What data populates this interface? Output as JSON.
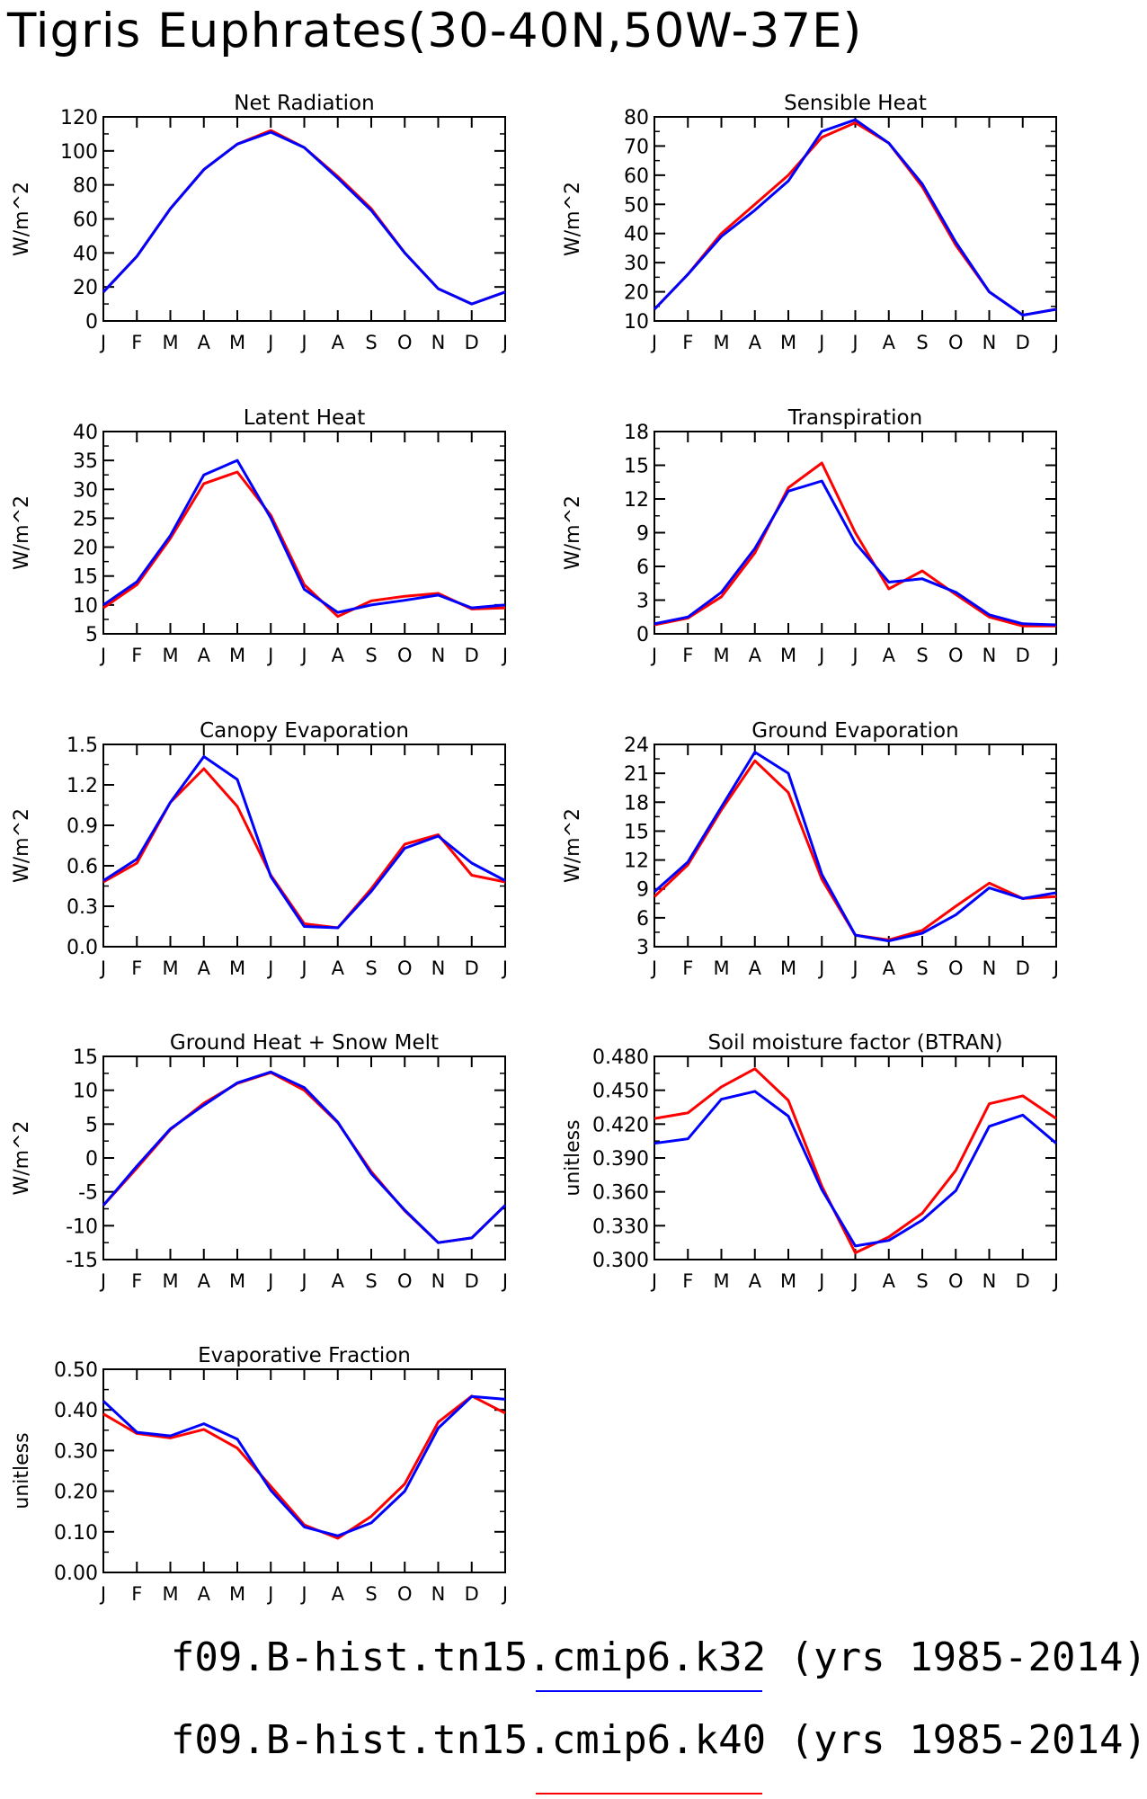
{
  "figure": {
    "title": "Tigris Euphrates(30-40N,50W-37E)"
  },
  "month_labels": [
    "J",
    "F",
    "M",
    "A",
    "M",
    "J",
    "J",
    "A",
    "S",
    "O",
    "N",
    "D",
    "J"
  ],
  "legend": [
    {
      "label": "f09.B-hist.tn15.cmip6.k32",
      "period": "(yrs 1985-2014)",
      "color": "#0000ff"
    },
    {
      "label": "f09.B-hist.tn15.cmip6.k40",
      "period": "(yrs 1985-2014)",
      "color": "#ff0000"
    }
  ],
  "chart_data": [
    {
      "type": "line",
      "title": "Net Radiation",
      "ylabel": "W/m^2",
      "ylim": [
        0,
        120
      ],
      "yticks": [
        "0",
        "20",
        "40",
        "60",
        "80",
        "100",
        "120"
      ],
      "series": [
        {
          "color": "#ff0000",
          "values": [
            17,
            38,
            66,
            89,
            104,
            112,
            102,
            85,
            66,
            40,
            19,
            10,
            17
          ]
        },
        {
          "color": "#0000ff",
          "values": [
            17,
            38,
            66,
            89,
            104,
            111,
            102,
            84,
            65,
            40,
            19,
            10,
            17
          ]
        }
      ]
    },
    {
      "type": "line",
      "title": "Sensible Heat",
      "ylabel": "W/m^2",
      "ylim": [
        10,
        80
      ],
      "yticks": [
        "10",
        "20",
        "30",
        "40",
        "50",
        "60",
        "70",
        "80"
      ],
      "series": [
        {
          "color": "#ff0000",
          "values": [
            14,
            26,
            40,
            50,
            60,
            73,
            78,
            71,
            56,
            36,
            20,
            12,
            14
          ]
        },
        {
          "color": "#0000ff",
          "values": [
            14,
            26,
            39,
            48,
            58,
            75,
            79,
            71,
            57,
            37,
            20,
            12,
            14
          ]
        }
      ]
    },
    {
      "type": "line",
      "title": "Latent Heat",
      "ylabel": "W/m^2",
      "ylim": [
        5,
        40
      ],
      "yticks": [
        "5",
        "10",
        "15",
        "20",
        "25",
        "30",
        "35",
        "40"
      ],
      "series": [
        {
          "color": "#ff0000",
          "values": [
            9.5,
            13.5,
            21.5,
            31,
            33,
            25.5,
            13.5,
            8,
            10.7,
            11.5,
            12,
            9.3,
            9.5
          ]
        },
        {
          "color": "#0000ff",
          "values": [
            10,
            14,
            22,
            32.5,
            35,
            25,
            12.7,
            8.7,
            10,
            10.8,
            11.7,
            9.5,
            10
          ]
        }
      ]
    },
    {
      "type": "line",
      "title": "Transpiration",
      "ylabel": "W/m^2",
      "ylim": [
        0,
        18
      ],
      "yticks": [
        "0",
        "3",
        "6",
        "9",
        "12",
        "15",
        "18"
      ],
      "series": [
        {
          "color": "#ff0000",
          "values": [
            0.8,
            1.4,
            3.3,
            7.2,
            13,
            15.2,
            9,
            4,
            5.6,
            3.5,
            1.5,
            0.7,
            0.7
          ]
        },
        {
          "color": "#0000ff",
          "values": [
            0.9,
            1.5,
            3.7,
            7.6,
            12.7,
            13.6,
            8.1,
            4.6,
            4.9,
            3.7,
            1.7,
            0.9,
            0.8
          ]
        }
      ]
    },
    {
      "type": "line",
      "title": "Canopy Evaporation",
      "ylabel": "W/m^2",
      "ylim": [
        0.0,
        1.5
      ],
      "yticks": [
        "0.0",
        "0.3",
        "0.6",
        "0.9",
        "1.2",
        "1.5"
      ],
      "series": [
        {
          "color": "#ff0000",
          "values": [
            0.48,
            0.62,
            1.07,
            1.32,
            1.04,
            0.53,
            0.17,
            0.14,
            0.43,
            0.76,
            0.83,
            0.53,
            0.48
          ]
        },
        {
          "color": "#0000ff",
          "values": [
            0.49,
            0.65,
            1.07,
            1.41,
            1.24,
            0.52,
            0.15,
            0.14,
            0.41,
            0.73,
            0.82,
            0.62,
            0.49
          ]
        }
      ]
    },
    {
      "type": "line",
      "title": "Ground Evaporation",
      "ylabel": "W/m^2",
      "ylim": [
        3,
        24
      ],
      "yticks": [
        "3",
        "6",
        "9",
        "12",
        "15",
        "18",
        "21",
        "24"
      ],
      "series": [
        {
          "color": "#ff0000",
          "values": [
            8.2,
            11.5,
            17.2,
            22.3,
            19,
            10,
            4.2,
            3.7,
            4.7,
            7.2,
            9.6,
            8.0,
            8.2
          ]
        },
        {
          "color": "#0000ff",
          "values": [
            8.7,
            11.8,
            17.5,
            23.2,
            21,
            10.5,
            4.2,
            3.6,
            4.4,
            6.3,
            9.1,
            8.0,
            8.6
          ]
        }
      ]
    },
    {
      "type": "line",
      "title": "Ground Heat + Snow Melt",
      "ylabel": "W/m^2",
      "ylim": [
        -15,
        15
      ],
      "yticks": [
        "-15",
        "-10",
        "-5",
        "0",
        "5",
        "10",
        "15"
      ],
      "series": [
        {
          "color": "#ff0000",
          "values": [
            -7,
            -1.5,
            4.2,
            8.1,
            11,
            12.6,
            10,
            5.2,
            -2,
            -7.8,
            -12.5,
            -11.8,
            -7
          ]
        },
        {
          "color": "#0000ff",
          "values": [
            -7,
            -1.2,
            4.3,
            7.8,
            11.1,
            12.7,
            10.4,
            5.3,
            -2.3,
            -7.7,
            -12.5,
            -11.8,
            -7
          ]
        }
      ]
    },
    {
      "type": "line",
      "title": "Soil moisture factor (BTRAN)",
      "ylabel": "unitless",
      "ylim": [
        0.3,
        0.48
      ],
      "yticks": [
        "0.300",
        "0.330",
        "0.360",
        "0.390",
        "0.420",
        "0.450",
        "0.480"
      ],
      "series": [
        {
          "color": "#ff0000",
          "values": [
            0.425,
            0.43,
            0.453,
            0.469,
            0.441,
            0.365,
            0.306,
            0.32,
            0.341,
            0.379,
            0.438,
            0.445,
            0.425
          ]
        },
        {
          "color": "#0000ff",
          "values": [
            0.403,
            0.407,
            0.442,
            0.449,
            0.427,
            0.362,
            0.312,
            0.317,
            0.335,
            0.361,
            0.418,
            0.428,
            0.403
          ]
        }
      ]
    },
    {
      "type": "line",
      "title": "Evaporative Fraction",
      "ylabel": "unitless",
      "ylim": [
        0.0,
        0.5
      ],
      "yticks": [
        "0.00",
        "0.10",
        "0.20",
        "0.30",
        "0.40",
        "0.50"
      ],
      "series": [
        {
          "color": "#ff0000",
          "values": [
            0.39,
            0.342,
            0.331,
            0.352,
            0.306,
            0.212,
            0.117,
            0.084,
            0.138,
            0.218,
            0.37,
            0.434,
            0.392
          ]
        },
        {
          "color": "#0000ff",
          "values": [
            0.422,
            0.345,
            0.336,
            0.366,
            0.328,
            0.202,
            0.112,
            0.09,
            0.122,
            0.2,
            0.355,
            0.433,
            0.426
          ]
        }
      ]
    }
  ]
}
